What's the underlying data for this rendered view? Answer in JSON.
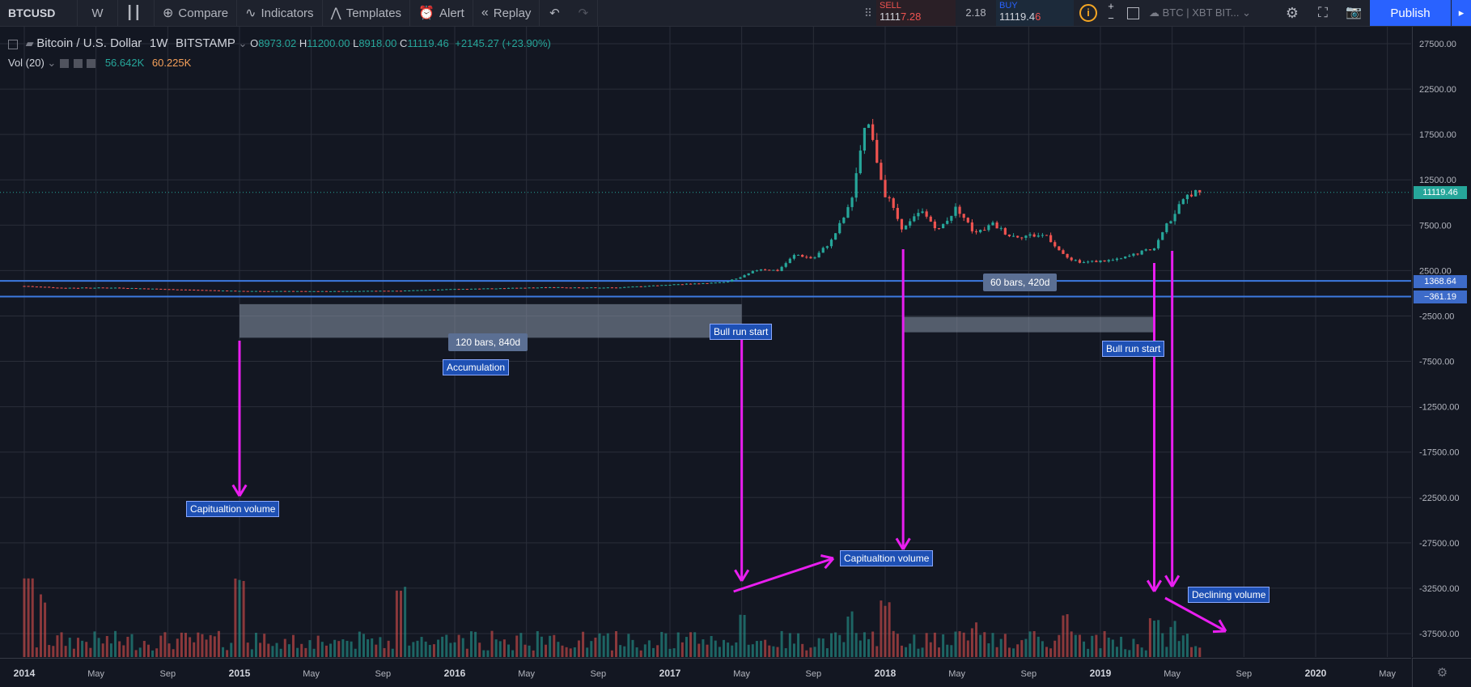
{
  "toolbar": {
    "symbol": "BTCUSD",
    "interval": "W",
    "compare": "Compare",
    "indicators": "Indicators",
    "templates": "Templates",
    "alert": "Alert",
    "replay": "Replay",
    "sell_label": "SELL",
    "sell_price_a": "1111",
    "sell_price_b": "7.28",
    "spread": "2.18",
    "buy_label": "BUY",
    "buy_price_a": "11119.4",
    "buy_price_b": "6",
    "plus": "+",
    "minus": "−",
    "exchange_selector": "BTC | XBT BIT...",
    "publish": "Publish"
  },
  "legend": {
    "title": "Bitcoin / U.S. Dollar",
    "interval": "1W",
    "exchange": "BITSTAMP",
    "o_label": "O",
    "o": "8973.02",
    "h_label": "H",
    "h": "11200.00",
    "l_label": "L",
    "l": "8918.00",
    "c_label": "C",
    "c": "11119.46",
    "change": "+2145.27 (+23.90%)",
    "vol_label": "Vol (20)",
    "vol_a": "56.642K",
    "vol_b": "60.225K"
  },
  "annotations": {
    "range1": "120 bars, 840d",
    "accumulation": "Accumulation",
    "bull1": "Bull run start",
    "cap1": "Capitualtion volume",
    "cap2": "Capitualtion volume",
    "range2": "60 bars, 420d",
    "bull2": "Bull run start",
    "declining": "Declining volume"
  },
  "price_badges": {
    "last": "11119.46",
    "line1": "1368.64",
    "line2": "−361.19"
  },
  "colors": {
    "up": "#26a69a",
    "down": "#ef5350",
    "magenta": "#e91ef0",
    "hline": "#3d7ae0"
  },
  "chart_data": {
    "type": "candlestick",
    "y_ticks": [
      "27500.00",
      "22500.00",
      "17500.00",
      "12500.00",
      "7500.00",
      "2500.00",
      "-2500.00",
      "-7500.00",
      "-12500.00",
      "-17500.00",
      "-22500.00",
      "-27500.00",
      "-32500.00",
      "-37500.00"
    ],
    "y_tick_values": [
      27500,
      22500,
      17500,
      12500,
      7500,
      2500,
      -2500,
      -7500,
      -12500,
      -17500,
      -22500,
      -27500,
      -32500,
      -37500
    ],
    "x_ticks": [
      "2014",
      "May",
      "Sep",
      "2015",
      "May",
      "Sep",
      "2016",
      "May",
      "Sep",
      "2017",
      "May",
      "Sep",
      "2018",
      "May",
      "Sep",
      "2019",
      "May",
      "Sep",
      "2020",
      "May"
    ],
    "x_tick_dates": [
      "2014-01",
      "2014-05",
      "2014-09",
      "2015-01",
      "2015-05",
      "2015-09",
      "2016-01",
      "2016-05",
      "2016-09",
      "2017-01",
      "2017-05",
      "2017-09",
      "2018-01",
      "2018-05",
      "2018-09",
      "2019-01",
      "2019-05",
      "2019-09",
      "2020-01",
      "2020-05"
    ],
    "price_anchors": [
      [
        "2014-01",
        800
      ],
      [
        "2014-03",
        600
      ],
      [
        "2014-06",
        620
      ],
      [
        "2014-09",
        450
      ],
      [
        "2015-01",
        250
      ],
      [
        "2015-06",
        230
      ],
      [
        "2015-10",
        280
      ],
      [
        "2015-12",
        420
      ],
      [
        "2016-06",
        650
      ],
      [
        "2016-10",
        620
      ],
      [
        "2017-01",
        950
      ],
      [
        "2017-04",
        1200
      ],
      [
        "2017-05",
        1800
      ],
      [
        "2017-06",
        2700
      ],
      [
        "2017-07",
        2500
      ],
      [
        "2017-08",
        4300
      ],
      [
        "2017-09",
        3800
      ],
      [
        "2017-10",
        5800
      ],
      [
        "2017-11",
        9500
      ],
      [
        "2017-12",
        19000
      ],
      [
        "2018-01",
        11000
      ],
      [
        "2018-02",
        7000
      ],
      [
        "2018-03",
        9000
      ],
      [
        "2018-04",
        7000
      ],
      [
        "2018-05",
        9500
      ],
      [
        "2018-06",
        6500
      ],
      [
        "2018-07",
        7600
      ],
      [
        "2018-08",
        6300
      ],
      [
        "2018-10",
        6400
      ],
      [
        "2018-11",
        4000
      ],
      [
        "2018-12",
        3400
      ],
      [
        "2019-02",
        3700
      ],
      [
        "2019-04",
        5000
      ],
      [
        "2019-05",
        8500
      ],
      [
        "2019-06",
        11119
      ]
    ],
    "horizontal_lines": [
      1368.64,
      -361.19
    ],
    "last_price": 11119.46,
    "volume_spikes": [
      [
        "2014-01",
        0.78
      ],
      [
        "2014-02",
        0.6
      ],
      [
        "2015-01",
        0.86
      ],
      [
        "2015-10",
        0.72
      ],
      [
        "2017-05",
        0.48
      ],
      [
        "2017-11",
        0.42
      ],
      [
        "2018-01",
        0.56
      ],
      [
        "2018-06",
        0.3
      ],
      [
        "2018-11",
        0.43
      ],
      [
        "2019-04",
        0.38
      ],
      [
        "2019-05",
        0.32
      ]
    ],
    "rect1": {
      "from": "2015-01",
      "to": "2017-05",
      "y_top": -1200,
      "y_bottom": -4900
    },
    "rect2": {
      "from": "2018-02",
      "to": "2019-04",
      "y_top": -2600,
      "y_bottom": -4300
    }
  }
}
